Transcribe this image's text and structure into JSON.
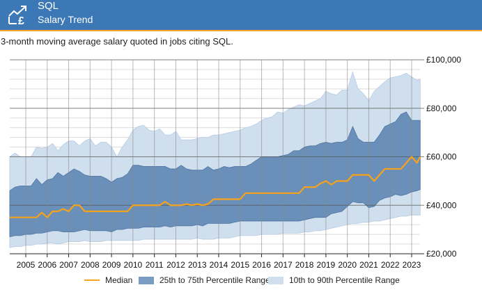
{
  "header": {
    "title": "SQL",
    "subtitle": "Salary Trend",
    "icon": "salary-trend-pound-icon"
  },
  "description": "3-month moving average salary quoted in jobs citing SQL.",
  "colors": {
    "header_bg": "#3d78b6",
    "header_border": "#f4a223",
    "median": "#f7a21b",
    "iqr_fill": "#6a8fb8",
    "iqr_edge": "#4e76a3",
    "decile_fill": "#d0dfee",
    "decile_edge": "#b7cbe2"
  },
  "legend": {
    "median": "Median",
    "iqr": "25th to 75th Percentile Range",
    "decile": "10th to 90th Percentile Range"
  },
  "chart_data": {
    "type": "area",
    "title": "",
    "xlabel": "",
    "ylabel": "",
    "xlim": [
      2004.25,
      2023.4
    ],
    "ylim": [
      20000,
      100000
    ],
    "x_ticks": [
      2005,
      2006,
      2007,
      2008,
      2009,
      2010,
      2011,
      2012,
      2013,
      2014,
      2015,
      2016,
      2017,
      2018,
      2019,
      2020,
      2021,
      2022,
      2023
    ],
    "x_tick_labels": [
      "2005",
      "2006",
      "2007",
      "2008",
      "2009",
      "2010",
      "2011",
      "2012",
      "2013",
      "2014",
      "2015",
      "2016",
      "2017",
      "2018",
      "2019",
      "2020",
      "2021",
      "2022",
      "2023"
    ],
    "y_ticks": [
      20000,
      40000,
      60000,
      80000,
      100000
    ],
    "y_tick_labels": [
      "£20,000",
      "£40,000",
      "£60,000",
      "£80,000",
      "£100,000"
    ],
    "y_minor_step": 4000,
    "y_axis_position": "right",
    "grid": true,
    "legend_position": "bottom",
    "x": [
      2004.25,
      2004.5,
      2004.75,
      2005.0,
      2005.25,
      2005.5,
      2005.75,
      2006.0,
      2006.25,
      2006.5,
      2006.75,
      2007.0,
      2007.25,
      2007.5,
      2007.75,
      2008.0,
      2008.25,
      2008.5,
      2008.75,
      2009.0,
      2009.25,
      2009.5,
      2009.75,
      2010.0,
      2010.25,
      2010.5,
      2010.75,
      2011.0,
      2011.25,
      2011.5,
      2011.75,
      2012.0,
      2012.25,
      2012.5,
      2012.75,
      2013.0,
      2013.25,
      2013.5,
      2013.75,
      2014.0,
      2014.25,
      2014.5,
      2014.75,
      2015.0,
      2015.25,
      2015.5,
      2015.75,
      2016.0,
      2016.25,
      2016.5,
      2016.75,
      2017.0,
      2017.25,
      2017.5,
      2017.75,
      2018.0,
      2018.25,
      2018.5,
      2018.75,
      2019.0,
      2019.25,
      2019.5,
      2019.75,
      2020.0,
      2020.25,
      2020.5,
      2020.75,
      2021.0,
      2021.25,
      2021.5,
      2021.75,
      2022.0,
      2022.25,
      2022.5,
      2022.75,
      2023.0,
      2023.25,
      2023.4
    ],
    "series": [
      {
        "name": "10th to 90th Percentile Range (90th)",
        "values": [
          60000,
          61500,
          60000,
          60000,
          60000,
          64000,
          63500,
          64000,
          65500,
          62500,
          65000,
          66500,
          66500,
          64500,
          66500,
          67500,
          64500,
          66000,
          66000,
          64000,
          60000,
          64000,
          67000,
          71000,
          72500,
          73000,
          71000,
          70500,
          71500,
          69000,
          69000,
          70500,
          67000,
          67000,
          67000,
          67500,
          68000,
          68000,
          69000,
          69000,
          69500,
          70000,
          70500,
          71000,
          72000,
          72500,
          73500,
          75000,
          76000,
          76500,
          78500,
          78000,
          79500,
          80500,
          81500,
          81000,
          82000,
          83000,
          84000,
          87000,
          86000,
          85500,
          87500,
          87500,
          95000,
          88000,
          86000,
          83000,
          87000,
          89000,
          91000,
          92500,
          93000,
          93500,
          94500,
          93000,
          91500,
          92000
        ]
      },
      {
        "name": "25th to 75th Percentile Range (75th)",
        "values": [
          46000,
          47500,
          48000,
          48000,
          48000,
          51000,
          48500,
          50500,
          51000,
          53500,
          52000,
          53500,
          55000,
          54000,
          52500,
          52000,
          52000,
          52000,
          51000,
          49500,
          51000,
          51500,
          53000,
          56500,
          56500,
          56000,
          56000,
          56000,
          56000,
          56000,
          55000,
          55000,
          56500,
          55000,
          54500,
          54500,
          54500,
          56000,
          54500,
          55000,
          56000,
          55500,
          56000,
          56000,
          56000,
          57000,
          58500,
          60000,
          60000,
          60000,
          60000,
          60500,
          61000,
          62500,
          62500,
          64000,
          64500,
          64500,
          65500,
          66000,
          65500,
          66000,
          66000,
          67000,
          72500,
          67500,
          66000,
          66000,
          66000,
          69000,
          72500,
          73500,
          74500,
          77500,
          78500,
          75000,
          75000,
          75000
        ]
      },
      {
        "name": "Median",
        "values": [
          35000,
          35000,
          35000,
          35000,
          35000,
          35000,
          37000,
          35000,
          37500,
          37500,
          38500,
          37500,
          40000,
          40000,
          37500,
          37500,
          37500,
          37500,
          37500,
          37500,
          37500,
          37500,
          37500,
          40000,
          40000,
          40000,
          40000,
          40000,
          40000,
          41500,
          40000,
          40000,
          40000,
          40500,
          40000,
          40500,
          40000,
          40500,
          42500,
          42500,
          42500,
          42500,
          42500,
          42500,
          45000,
          45000,
          45000,
          45000,
          45000,
          45000,
          45000,
          45000,
          45000,
          45000,
          45000,
          47500,
          47500,
          47500,
          49000,
          50000,
          48500,
          50000,
          50000,
          50000,
          52500,
          52500,
          52500,
          52500,
          50000,
          52500,
          55000,
          55000,
          55000,
          55000,
          57500,
          60000,
          57500,
          60000
        ]
      },
      {
        "name": "25th to 75th Percentile Range (25th)",
        "values": [
          27000,
          27500,
          27500,
          28000,
          28000,
          28500,
          28500,
          29000,
          29500,
          29500,
          29000,
          29000,
          29000,
          29500,
          30000,
          29500,
          29500,
          29500,
          29500,
          29000,
          30000,
          30000,
          30500,
          30500,
          30500,
          31000,
          31000,
          31000,
          31000,
          31500,
          31000,
          31500,
          31500,
          31500,
          31500,
          32000,
          31500,
          32500,
          32500,
          32500,
          32500,
          32500,
          33000,
          33500,
          33500,
          33500,
          33500,
          33500,
          33500,
          33500,
          33500,
          33500,
          33500,
          33500,
          33500,
          34000,
          34500,
          35000,
          35000,
          35000,
          36500,
          37000,
          37500,
          39500,
          41500,
          41000,
          41000,
          39000,
          39500,
          42000,
          43000,
          43500,
          44500,
          44000,
          44500,
          45500,
          46000,
          46500
        ]
      },
      {
        "name": "10th to 90th Percentile Range (10th)",
        "values": [
          22500,
          23000,
          23000,
          23500,
          23500,
          24000,
          24000,
          24500,
          24500,
          24000,
          24500,
          25000,
          25000,
          25000,
          25500,
          25000,
          25000,
          25000,
          25500,
          25500,
          25500,
          25500,
          25500,
          25500,
          25500,
          26000,
          26000,
          26000,
          26000,
          26000,
          26000,
          26000,
          26000,
          26000,
          26000,
          26500,
          26000,
          26000,
          26000,
          26500,
          26500,
          26500,
          27000,
          27500,
          27500,
          27500,
          27500,
          28000,
          28000,
          28000,
          28000,
          28500,
          28500,
          28500,
          28500,
          29000,
          29000,
          29500,
          29500,
          30000,
          30500,
          31000,
          31500,
          32000,
          32500,
          32500,
          33000,
          33000,
          33500,
          33500,
          34000,
          34500,
          35000,
          35500,
          35500,
          36000,
          36000,
          36000
        ]
      }
    ]
  }
}
